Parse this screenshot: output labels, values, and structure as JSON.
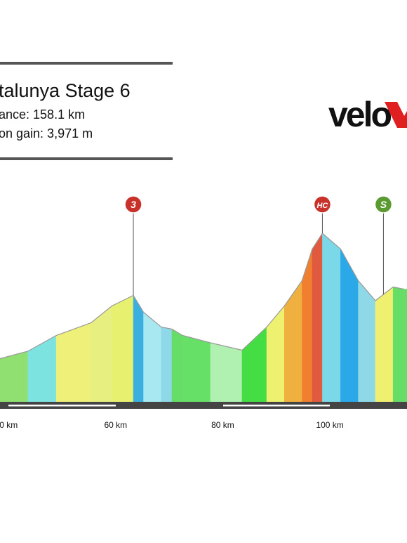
{
  "header": {
    "title": "talunya Stage 6",
    "lines": [
      "ance: 158.1 km",
      "on gain: 3,971 m"
    ]
  },
  "logo": "velo",
  "chart_data": {
    "type": "area",
    "x": [
      38.4,
      43.6,
      48.9,
      55.4,
      59.3,
      63.3,
      65.2,
      68.5,
      70.5,
      72.5,
      77.7,
      83.6,
      88.2,
      91.5,
      94.8,
      96.7,
      98.6,
      102.0,
      105.3,
      108.5,
      111.8,
      113.8
    ],
    "values": [
      410,
      480,
      630,
      750,
      910,
      1010,
      850,
      710,
      690,
      630,
      560,
      490,
      710,
      910,
      1150,
      1450,
      1600,
      1450,
      1150,
      960,
      1090,
      1070
    ],
    "segment_colors": [
      "#8fe070",
      "#7de3e0",
      "#eef07a",
      "#e6ef80",
      "#e8f070",
      "#3bb0e0",
      "#a8e8f0",
      "#8ed8e8",
      "#66dd66",
      "#66e066",
      "#b0f0b0",
      "#44dd44",
      "#eef070",
      "#f0b040",
      "#f08030",
      "#e05a40",
      "#7ad8e8",
      "#2aa8e8",
      "#8ed8e8",
      "#f0f070",
      "#66dd66",
      "#66dd66"
    ],
    "xlim": [
      38.4,
      114.4
    ],
    "ylim": [
      0,
      2000
    ],
    "xticks": [
      {
        "value": 40,
        "label": "0 km"
      },
      {
        "value": 60,
        "label": "60 km"
      },
      {
        "value": 80,
        "label": "80 km"
      },
      {
        "value": 100,
        "label": "100 km"
      }
    ],
    "climbs": [
      {
        "label": "3",
        "km": 63.3,
        "color": "#c8322a"
      },
      {
        "label": "HC",
        "km": 98.6,
        "color": "#c8322a"
      },
      {
        "label": "S",
        "km": 110.0,
        "color": "#5a9a30"
      }
    ]
  }
}
